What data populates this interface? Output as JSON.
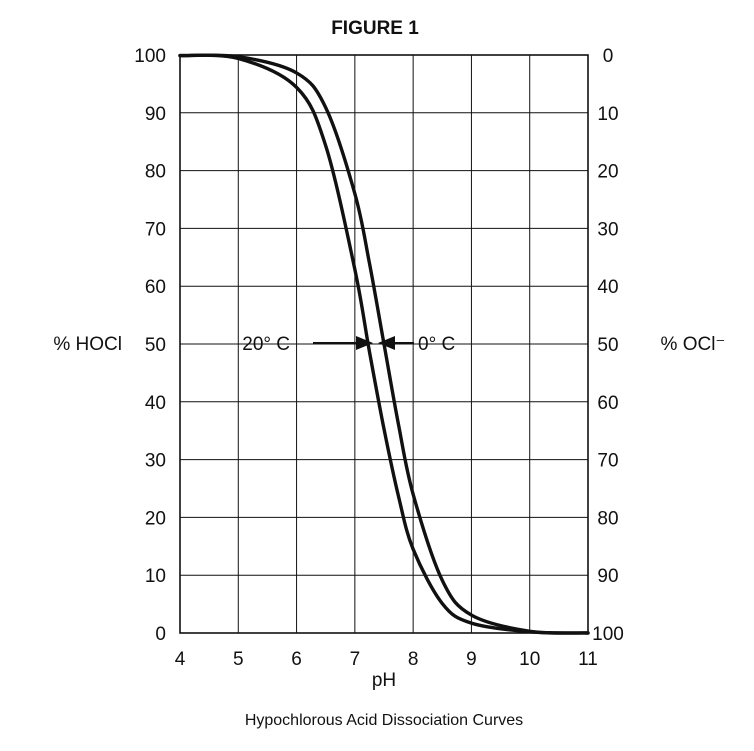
{
  "chart_data": {
    "type": "line",
    "title": "FIGURE 1",
    "caption": "Hypochlorous Acid Dissociation Curves",
    "xlabel": "pH",
    "ylabel_left": "% HOCl",
    "ylabel_right": "% OCl⁻",
    "xlim": [
      4,
      11
    ],
    "ylim": [
      0,
      100
    ],
    "x_ticks": [
      "4",
      "5",
      "6",
      "7",
      "8",
      "9",
      "10",
      "11"
    ],
    "y_ticks_left": [
      "0",
      "10",
      "20",
      "30",
      "40",
      "50",
      "60",
      "70",
      "80",
      "90",
      "100"
    ],
    "y_ticks_right": [
      "100",
      "90",
      "80",
      "70",
      "60",
      "50",
      "40",
      "30",
      "20",
      "10",
      "0"
    ],
    "grid": true,
    "series": [
      {
        "name": "20° C",
        "x": [
          4,
          5,
          6,
          6.5,
          7,
          7.25,
          7.5,
          7.75,
          8,
          8.5,
          9,
          10,
          11
        ],
        "y": [
          99.9,
          99.4,
          94.4,
          84.3,
          62.9,
          48.7,
          35.3,
          23.6,
          14.5,
          5.1,
          1.7,
          0.2,
          0.0
        ]
      },
      {
        "name": "0° C",
        "x": [
          4,
          5,
          6,
          6.5,
          7,
          7.25,
          7.5,
          7.75,
          8,
          8.5,
          9,
          10,
          11
        ],
        "y": [
          99.9,
          99.7,
          96.9,
          90.9,
          76.0,
          64.0,
          50.0,
          36.0,
          24.0,
          9.1,
          3.1,
          0.3,
          0.0
        ]
      }
    ],
    "annotations": [
      {
        "text": "20° C",
        "target_series": "20° C",
        "arrow": "right"
      },
      {
        "text": "0° C",
        "target_series": "0° C",
        "arrow": "left"
      }
    ]
  }
}
